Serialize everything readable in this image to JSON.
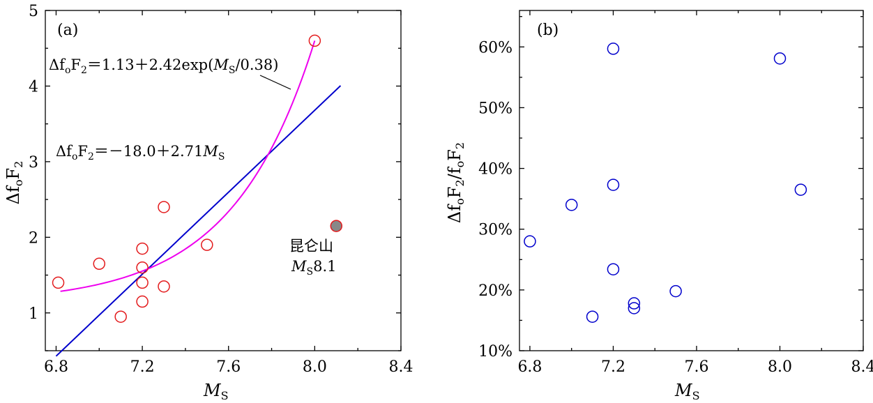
{
  "chart_data": [
    {
      "type": "scatter",
      "panel_label": "(a)",
      "xlabel": "M_S",
      "ylabel": "Δf_oF_2",
      "xlim": [
        6.75,
        8.4
      ],
      "ylim": [
        0.5,
        5
      ],
      "xticks": [
        6.8,
        7.2,
        7.6,
        8.0,
        8.4
      ],
      "xtick_labels": [
        "6.8",
        "7.2",
        "7.6",
        "8.0",
        "8.4"
      ],
      "yticks": [
        1,
        2,
        3,
        4,
        5
      ],
      "ytick_labels": [
        "1",
        "2",
        "3",
        "4",
        "5"
      ],
      "grid": false,
      "series": [
        {
          "marker": "open-circle",
          "color": "#e31a1c",
          "x": [
            6.81,
            7.0,
            7.1,
            7.2,
            7.2,
            7.2,
            7.2,
            7.3,
            7.3,
            7.5,
            8.0
          ],
          "y": [
            1.4,
            1.65,
            0.95,
            1.85,
            1.6,
            1.4,
            1.15,
            2.4,
            1.35,
            1.9,
            4.6
          ]
        },
        {
          "marker": "filled-circle",
          "color": "#888888",
          "edge_color": "#e31a1c",
          "x": [
            8.1
          ],
          "y": [
            2.15
          ]
        }
      ],
      "fits": [
        {
          "kind": "linear",
          "color": "#0000cc",
          "intercept": -18.0,
          "slope": 2.71,
          "x_range": [
            6.8,
            8.12
          ],
          "label": "Δf_oF_2＝－18.0＋2.71M_S"
        },
        {
          "kind": "exponential",
          "color": "#ee00ee",
          "a": 1.13,
          "b": 2.42,
          "x_range": [
            6.82,
            8.0
          ],
          "label": "Δf_oF_2＝1.13＋2.42exp(M_S/0.38)"
        }
      ],
      "annotations": {
        "fit_exp": {
          "pre": "Δf",
          "sub1": "o",
          "mid": "F",
          "sub2": "2",
          "post": "＝1.13＋2.42exp(",
          "var": "M",
          "varsub": "S",
          "tail": "/0.38)"
        },
        "fit_lin": {
          "pre": "Δf",
          "sub1": "o",
          "mid": "F",
          "sub2": "2",
          "post": "＝－18.0＋2.71",
          "var": "M",
          "varsub": "S"
        },
        "kunlun_name": "昆仑山",
        "kunlun_mag": {
          "var": "M",
          "varsub": "S",
          "value": "8.1"
        }
      }
    },
    {
      "type": "scatter",
      "panel_label": "(b)",
      "xlabel": "M_S",
      "ylabel": "Δf_oF_2/f_oF_2",
      "xlim": [
        6.75,
        8.4
      ],
      "ylim": [
        10,
        66
      ],
      "xticks": [
        6.8,
        7.2,
        7.6,
        8.0,
        8.4
      ],
      "xtick_labels": [
        "6.8",
        "7.2",
        "7.6",
        "8.0",
        "8.4"
      ],
      "yticks": [
        10,
        20,
        30,
        40,
        50,
        60
      ],
      "ytick_labels": [
        "10%",
        "20%",
        "30%",
        "40%",
        "50%",
        "60%"
      ],
      "grid": false,
      "series": [
        {
          "marker": "open-circle",
          "color": "#0000cc",
          "x": [
            6.8,
            7.0,
            7.1,
            7.2,
            7.2,
            7.2,
            7.3,
            7.3,
            7.5,
            8.0,
            8.1
          ],
          "y": [
            28.0,
            34.0,
            15.6,
            59.7,
            37.3,
            23.4,
            17.8,
            17.0,
            19.8,
            58.1,
            36.5
          ]
        }
      ]
    }
  ],
  "labels": {
    "xlabel_var": "M",
    "xlabel_sub": "S",
    "ylabel_a": {
      "pre": "Δf",
      "sub1": "o",
      "mid": "F",
      "sub2": "2"
    },
    "ylabel_b": {
      "pre": "Δf",
      "sub1": "o",
      "mid": "F",
      "sub2": "2",
      "sep": "/f",
      "sub3": "o",
      "mid2": "F",
      "sub4": "2"
    }
  }
}
